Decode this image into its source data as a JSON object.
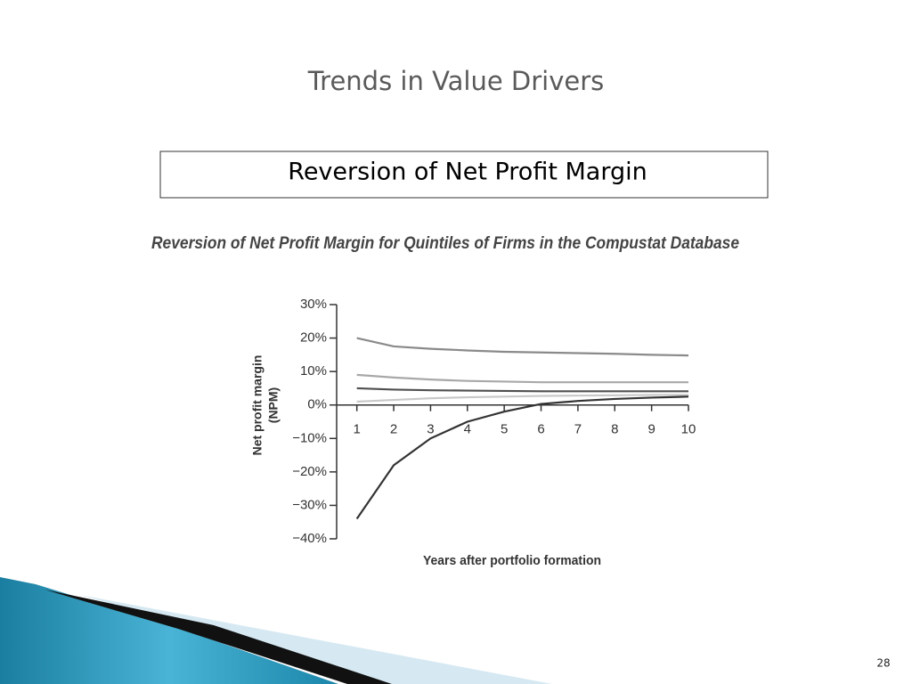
{
  "slide_title": "Trends in Value Drivers",
  "box_title": "Reversion of Net Profit Margin",
  "slide_number": "28",
  "chart_data": {
    "type": "line",
    "title": "Reversion of Net Profit Margin for Quintiles of Firms in the Compustat Database",
    "ylabel": [
      "Net profit margin",
      "(NPM)"
    ],
    "xlabel": "Years after portfolio formation",
    "x": [
      1,
      2,
      3,
      4,
      5,
      6,
      7,
      8,
      9,
      10
    ],
    "xlim": [
      0.5,
      10
    ],
    "xticks": [
      1,
      2,
      3,
      4,
      5,
      6,
      7,
      8,
      9,
      10
    ],
    "ylim": [
      -40,
      30
    ],
    "yticks": [
      {
        "value": 30,
        "label": "30%"
      },
      {
        "value": 20,
        "label": "20%"
      },
      {
        "value": 10,
        "label": "10%"
      },
      {
        "value": 0,
        "label": "0%"
      },
      {
        "value": -10,
        "label": "−10%"
      },
      {
        "value": -20,
        "label": "−20%"
      },
      {
        "value": -30,
        "label": "−30%"
      },
      {
        "value": -40,
        "label": "−40%"
      }
    ],
    "series": [
      {
        "color": "#8a8a8a",
        "values": [
          20,
          17.5,
          16.8,
          16.3,
          15.9,
          15.7,
          15.5,
          15.3,
          15,
          14.8
        ]
      },
      {
        "color": "#a8a8a8",
        "values": [
          9,
          8.2,
          7.6,
          7.2,
          7,
          6.8,
          6.8,
          6.8,
          6.8,
          6.8
        ]
      },
      {
        "color": "#505050",
        "values": [
          5,
          4.6,
          4.4,
          4.3,
          4.2,
          4.1,
          4.1,
          4.1,
          4.1,
          4.1
        ]
      },
      {
        "color": "#c8c8c8",
        "values": [
          1,
          1.5,
          2,
          2.3,
          2.5,
          2.7,
          2.8,
          2.9,
          3,
          3
        ]
      },
      {
        "color": "#333333",
        "values": [
          -34,
          -18,
          -10,
          -5,
          -2,
          0.3,
          1.2,
          1.8,
          2.2,
          2.5
        ]
      }
    ]
  }
}
